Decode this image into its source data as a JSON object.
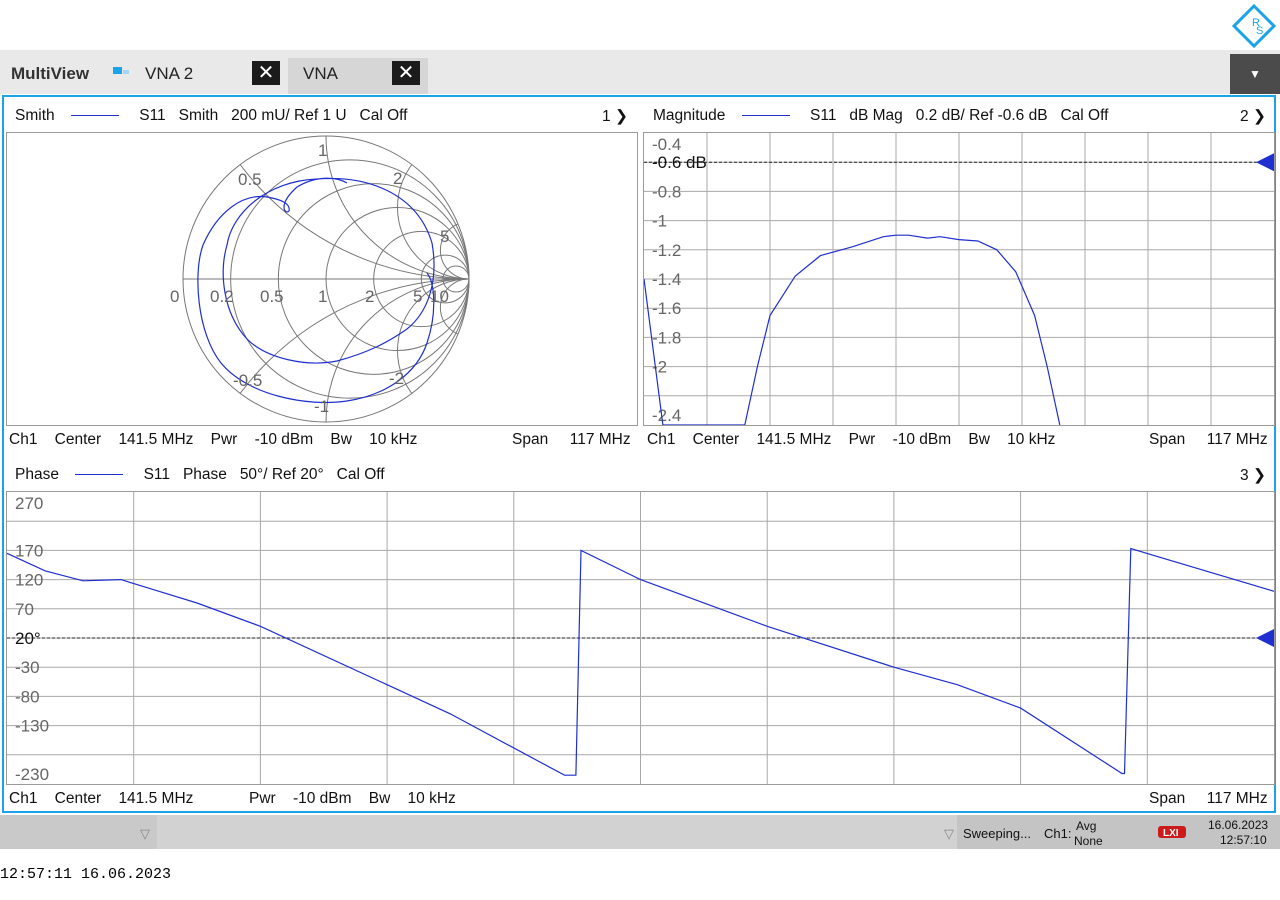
{
  "tabs": [
    {
      "label": "MultiView"
    },
    {
      "label": "VNA 2"
    },
    {
      "label": "VNA"
    }
  ],
  "colors": {
    "accent": "#1aa3e8",
    "trace": "#1f2fd0",
    "marker": "#1f2fd0"
  },
  "diagrams": {
    "smith": {
      "title": "Smith",
      "trace": "S11",
      "format": "Smith",
      "scale": "200 mU/ Ref 1 U",
      "cal": "Cal Off",
      "number": "1",
      "resistance_labels": [
        "0",
        "0.2",
        "0.5",
        "1",
        "2",
        "5",
        "10"
      ],
      "reactance_labels": [
        "0.5",
        "1",
        "2",
        "5",
        "-0.5",
        "-1",
        "-2"
      ],
      "footer": {
        "channel": "Ch1",
        "center_label": "Center",
        "center": "141.5 MHz",
        "pwr_label": "Pwr",
        "pwr": "-10 dBm",
        "bw_label": "Bw",
        "bw": "10 kHz",
        "span_label": "Span",
        "span": "117 MHz"
      }
    },
    "magnitude": {
      "title": "Magnitude",
      "trace": "S11",
      "format": "dB Mag",
      "scale": "0.2 dB/ Ref -0.6 dB",
      "cal": "Cal Off",
      "number": "2",
      "ref_label": "-0.6 dB",
      "y_ticks": [
        "-0.4",
        "-0.8",
        "-1",
        "-1.2",
        "-1.4",
        "-1.6",
        "-1.8",
        "-2",
        "-2.4"
      ],
      "footer": {
        "channel": "Ch1",
        "center_label": "Center",
        "center": "141.5 MHz",
        "pwr_label": "Pwr",
        "pwr": "-10 dBm",
        "bw_label": "Bw",
        "bw": "10 kHz",
        "span_label": "Span",
        "span": "117 MHz"
      }
    },
    "phase": {
      "title": "Phase",
      "trace": "S11",
      "format": "Phase",
      "scale": "50°/ Ref 20°",
      "cal": "Cal Off",
      "number": "3",
      "ref_label": "20°",
      "y_ticks": [
        "270",
        "170",
        "120",
        "70",
        "-30",
        "-80",
        "-130",
        "-230"
      ],
      "footer": {
        "channel": "Ch1",
        "center_label": "Center",
        "center": "141.5 MHz",
        "pwr_label": "Pwr",
        "pwr": "-10 dBm",
        "bw_label": "Bw",
        "bw": "10 kHz",
        "span_label": "Span",
        "span": "117 MHz"
      }
    }
  },
  "status": {
    "sweeping": "Sweeping...",
    "channel": "Ch1:",
    "avg_label": "Avg",
    "avg_value": "None",
    "date": "16.06.2023",
    "time": "12:57:10"
  },
  "clock": "12:57:11  16.06.2023",
  "chart_data": [
    {
      "type": "line",
      "title": "Magnitude",
      "series": [
        {
          "name": "S11",
          "x": [
            0,
            0.03,
            0.16,
            0.18,
            0.2,
            0.24,
            0.28,
            0.33,
            0.38,
            0.4,
            0.42,
            0.45,
            0.47,
            0.5,
            0.53,
            0.56,
            0.59,
            0.62,
            0.64,
            0.66
          ],
          "y": [
            -1.4,
            -2.4,
            -2.4,
            -2.0,
            -1.65,
            -1.38,
            -1.24,
            -1.18,
            -1.11,
            -1.1,
            -1.1,
            -1.12,
            -1.11,
            -1.13,
            -1.14,
            -1.2,
            -1.35,
            -1.65,
            -2.0,
            -2.4
          ]
        }
      ],
      "ylim": [
        -2.4,
        -0.4
      ],
      "reference": -0.6
    },
    {
      "type": "line",
      "title": "Phase",
      "series": [
        {
          "name": "S11",
          "x": [
            0,
            0.03,
            0.06,
            0.09,
            0.12,
            0.15,
            0.2,
            0.3,
            0.35,
            0.44,
            0.449,
            0.453,
            0.5,
            0.6,
            0.7,
            0.75,
            0.8,
            0.88,
            0.882,
            0.887,
            1.0
          ],
          "y": [
            165,
            135,
            118,
            120,
            100,
            80,
            40,
            -60,
            -110,
            -215,
            -215,
            170,
            120,
            40,
            -30,
            -60,
            -100,
            -212,
            -212,
            173,
            100
          ]
        }
      ],
      "ylim": [
        -230,
        270
      ],
      "reference": 20
    }
  ]
}
